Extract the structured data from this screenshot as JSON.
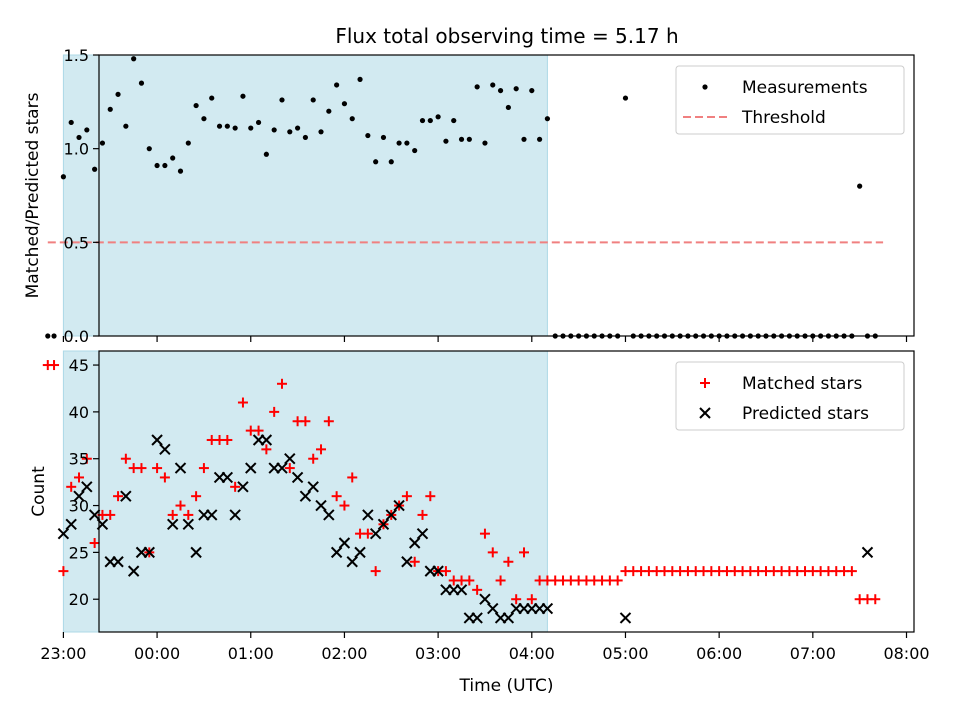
{
  "title": "Flux total observing time = 5.17 h",
  "colors": {
    "shade": "#add8e6",
    "threshold": "#f08080",
    "matched": "#ff0000",
    "predicted": "#000000",
    "measurement": "#000000"
  },
  "chart_data": [
    {
      "type": "scatter",
      "ylabel": "Matched/Predicted stars",
      "xlim_hours": [
        -0.62,
        8.08
      ],
      "ylim": [
        0,
        1.5
      ],
      "yticks": [
        "0.0",
        "0.5",
        "1.0",
        "1.5"
      ],
      "shaded_region": [
        "23:00",
        "04:10"
      ],
      "legend_position": "top-right",
      "series": [
        {
          "name": "Measurements",
          "kind": "points",
          "x": [
            "22:50",
            "22:54",
            "23:00",
            "23:05",
            "23:10",
            "23:15",
            "23:20",
            "23:25",
            "23:30",
            "23:35",
            "23:40",
            "23:45",
            "23:50",
            "23:55",
            "00:00",
            "00:05",
            "00:10",
            "00:15",
            "00:20",
            "00:25",
            "00:30",
            "00:35",
            "00:40",
            "00:45",
            "00:50",
            "00:55",
            "01:00",
            "01:05",
            "01:10",
            "01:15",
            "01:20",
            "01:25",
            "01:30",
            "01:35",
            "01:40",
            "01:45",
            "01:50",
            "01:55",
            "02:00",
            "02:05",
            "02:10",
            "02:15",
            "02:20",
            "02:25",
            "02:30",
            "02:35",
            "02:40",
            "02:45",
            "02:50",
            "02:55",
            "03:00",
            "03:05",
            "03:10",
            "03:15",
            "03:20",
            "03:25",
            "03:30",
            "03:35",
            "03:40",
            "03:45",
            "03:50",
            "03:55",
            "04:00",
            "04:05",
            "04:10",
            "04:15",
            "04:20",
            "04:25",
            "04:30",
            "04:35",
            "04:40",
            "04:45",
            "04:50",
            "04:55",
            "05:00",
            "05:05",
            "05:10",
            "05:15",
            "05:20",
            "05:25",
            "05:30",
            "05:35",
            "05:40",
            "05:45",
            "05:50",
            "05:55",
            "06:00",
            "06:05",
            "06:10",
            "06:15",
            "06:20",
            "06:25",
            "06:30",
            "06:35",
            "06:40",
            "06:45",
            "06:50",
            "06:55",
            "07:00",
            "07:05",
            "07:10",
            "07:15",
            "07:20",
            "07:25",
            "07:30",
            "07:35",
            "07:40"
          ],
          "values": [
            0,
            0,
            0.85,
            1.14,
            1.06,
            1.1,
            0.89,
            1.03,
            1.21,
            1.29,
            1.12,
            1.48,
            1.35,
            1.0,
            0.91,
            0.91,
            0.95,
            0.88,
            1.03,
            1.23,
            1.16,
            1.27,
            1.12,
            1.12,
            1.11,
            1.28,
            1.11,
            1.14,
            0.97,
            1.1,
            1.26,
            1.09,
            1.11,
            1.06,
            1.26,
            1.09,
            1.2,
            1.34,
            1.24,
            1.16,
            1.37,
            1.07,
            0.93,
            1.06,
            0.93,
            1.03,
            1.03,
            0.99,
            1.15,
            1.15,
            1.17,
            1.04,
            1.15,
            1.05,
            1.05,
            1.33,
            1.03,
            1.34,
            1.31,
            1.22,
            1.32,
            1.05,
            1.31,
            1.05,
            1.16,
            0,
            0,
            0,
            0,
            0,
            0,
            0,
            0,
            0,
            1.27,
            0,
            0,
            0,
            0,
            0,
            0,
            0,
            0,
            0,
            0,
            0,
            0,
            0,
            0,
            0,
            0,
            0,
            0,
            0,
            0,
            0,
            0,
            0,
            0,
            0,
            0,
            0,
            0,
            0,
            0.8,
            0,
            0
          ]
        },
        {
          "name": "Threshold",
          "kind": "dashed-line",
          "x": [
            "22:50",
            "07:45"
          ],
          "values": [
            0.5,
            0.5
          ]
        }
      ]
    },
    {
      "type": "scatter",
      "xlabel": "Time (UTC)",
      "ylabel": "Count",
      "xlim_hours": [
        -0.62,
        8.08
      ],
      "ylim": [
        16.5,
        46.5
      ],
      "yticks": [
        "20",
        "25",
        "30",
        "35",
        "40",
        "45"
      ],
      "xticks": [
        "23:00",
        "00:00",
        "01:00",
        "02:00",
        "03:00",
        "04:00",
        "05:00",
        "06:00",
        "07:00",
        "08:00"
      ],
      "shaded_region": [
        "23:00",
        "04:10"
      ],
      "legend_position": "top-right",
      "series": [
        {
          "name": "Matched stars",
          "kind": "plus",
          "x": [
            "22:50",
            "22:54",
            "23:00",
            "23:05",
            "23:10",
            "23:15",
            "23:20",
            "23:25",
            "23:30",
            "23:35",
            "23:40",
            "23:45",
            "23:50",
            "23:55",
            "00:00",
            "00:05",
            "00:10",
            "00:15",
            "00:20",
            "00:25",
            "00:30",
            "00:35",
            "00:40",
            "00:45",
            "00:50",
            "00:55",
            "01:00",
            "01:05",
            "01:10",
            "01:15",
            "01:20",
            "01:25",
            "01:30",
            "01:35",
            "01:40",
            "01:45",
            "01:50",
            "01:55",
            "02:00",
            "02:05",
            "02:10",
            "02:15",
            "02:20",
            "02:25",
            "02:30",
            "02:35",
            "02:40",
            "02:45",
            "02:50",
            "02:55",
            "03:00",
            "03:05",
            "03:10",
            "03:15",
            "03:20",
            "03:25",
            "03:30",
            "03:35",
            "03:40",
            "03:45",
            "03:50",
            "03:55",
            "04:00",
            "04:05",
            "04:10",
            "04:15",
            "04:20",
            "04:25",
            "04:30",
            "04:35",
            "04:40",
            "04:45",
            "04:50",
            "04:55",
            "05:00",
            "05:05",
            "05:10",
            "05:15",
            "05:20",
            "05:25",
            "05:30",
            "05:35",
            "05:40",
            "05:45",
            "05:50",
            "05:55",
            "06:00",
            "06:05",
            "06:10",
            "06:15",
            "06:20",
            "06:25",
            "06:30",
            "06:35",
            "06:40",
            "06:45",
            "06:50",
            "06:55",
            "07:00",
            "07:05",
            "07:10",
            "07:15",
            "07:20",
            "07:25",
            "07:30",
            "07:35",
            "07:40"
          ],
          "values": [
            45,
            45,
            23,
            32,
            33,
            35,
            26,
            29,
            29,
            31,
            35,
            34,
            34,
            25,
            34,
            33,
            29,
            30,
            29,
            31,
            34,
            37,
            37,
            37,
            32,
            41,
            38,
            38,
            36,
            40,
            43,
            34,
            39,
            39,
            35,
            36,
            39,
            31,
            30,
            33,
            27,
            27,
            23,
            28,
            29,
            30,
            31,
            24,
            29,
            31,
            23,
            23,
            22,
            22,
            22,
            21,
            27,
            25,
            22,
            24,
            20,
            25,
            20,
            22,
            22,
            22,
            22,
            22,
            22,
            22,
            22,
            22,
            22,
            22,
            23,
            23,
            23,
            23,
            23,
            23,
            23,
            23,
            23,
            23,
            23,
            23,
            23,
            23,
            23,
            23,
            23,
            23,
            23,
            23,
            23,
            23,
            23,
            23,
            23,
            23,
            23,
            23,
            23,
            23,
            20,
            20,
            20
          ]
        },
        {
          "name": "Predicted stars",
          "kind": "x",
          "x": [
            "23:00",
            "23:05",
            "23:10",
            "23:15",
            "23:20",
            "23:25",
            "23:30",
            "23:35",
            "23:40",
            "23:45",
            "23:50",
            "23:55",
            "00:00",
            "00:05",
            "00:10",
            "00:15",
            "00:20",
            "00:25",
            "00:30",
            "00:35",
            "00:40",
            "00:45",
            "00:50",
            "00:55",
            "01:00",
            "01:05",
            "01:10",
            "01:15",
            "01:20",
            "01:25",
            "01:30",
            "01:35",
            "01:40",
            "01:45",
            "01:50",
            "01:55",
            "02:00",
            "02:05",
            "02:10",
            "02:15",
            "02:20",
            "02:25",
            "02:30",
            "02:35",
            "02:40",
            "02:45",
            "02:50",
            "02:55",
            "03:00",
            "03:05",
            "03:10",
            "03:15",
            "03:20",
            "03:25",
            "03:30",
            "03:35",
            "03:40",
            "03:45",
            "03:50",
            "03:55",
            "04:00",
            "04:05",
            "04:10",
            "05:00",
            "07:35"
          ],
          "values": [
            27,
            28,
            31,
            32,
            29,
            28,
            24,
            24,
            31,
            23,
            25,
            25,
            37,
            36,
            28,
            34,
            28,
            25,
            29,
            29,
            33,
            33,
            29,
            32,
            34,
            37,
            37,
            34,
            34,
            35,
            33,
            31,
            32,
            30,
            29,
            25,
            26,
            24,
            25,
            29,
            27,
            28,
            29,
            30,
            24,
            26,
            27,
            23,
            23,
            21,
            21,
            21,
            18,
            18,
            20,
            19,
            18,
            18,
            19,
            19,
            19,
            19,
            19,
            18,
            25
          ]
        }
      ]
    }
  ]
}
